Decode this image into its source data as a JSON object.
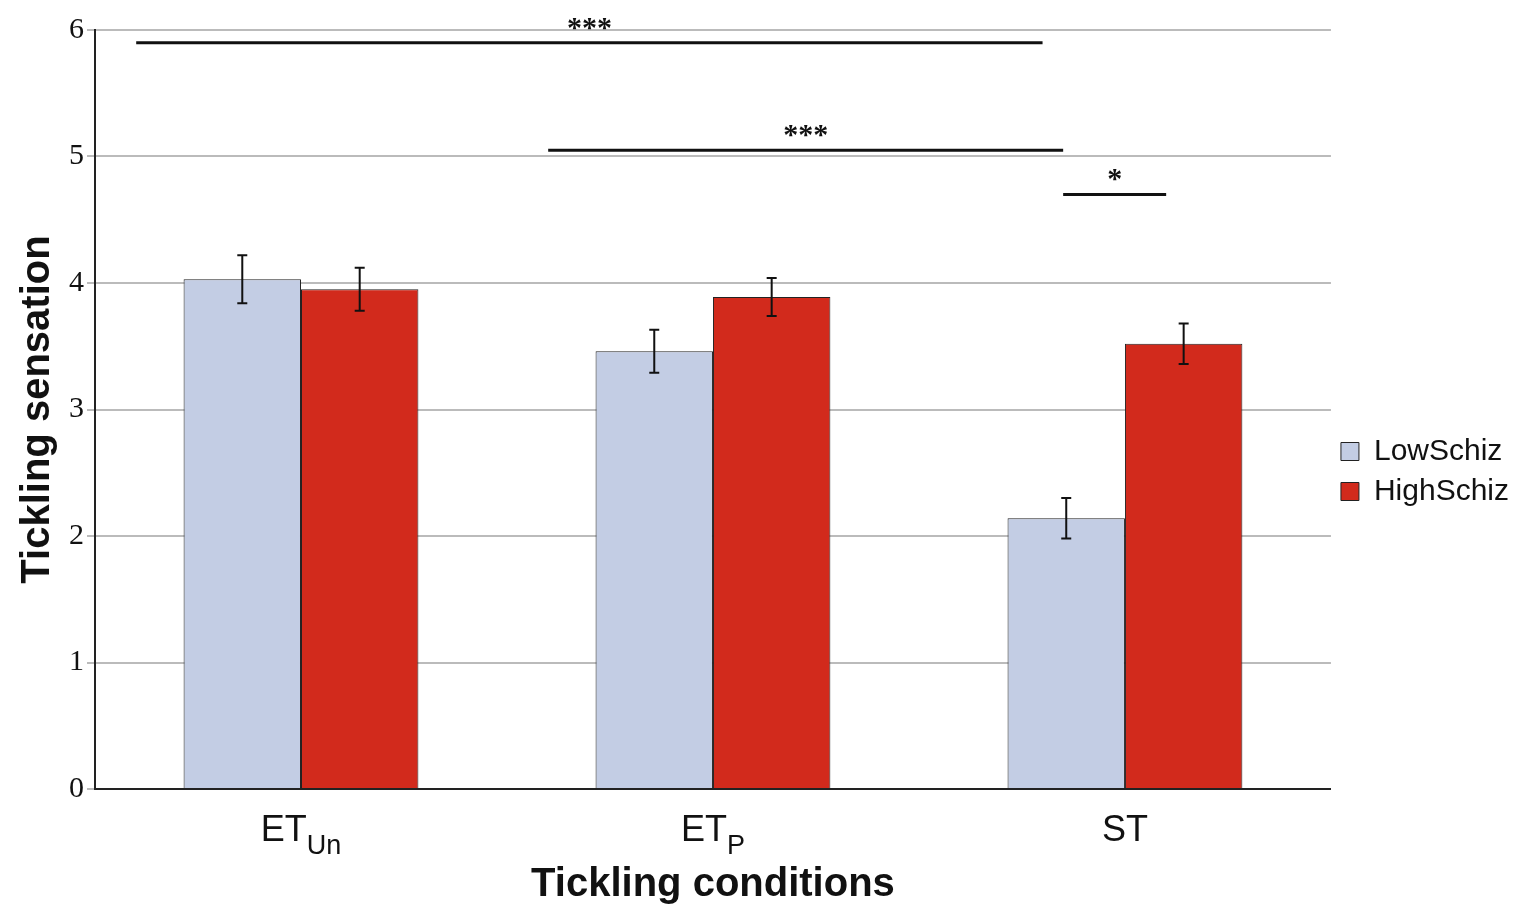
{
  "chart_data": {
    "type": "bar",
    "xlabel": "Tickling conditions",
    "ylabel": "Tickling sensation",
    "categories": [
      "ET$_{Un}$",
      "ET$_{P}$",
      "ST"
    ],
    "series": [
      {
        "name": "LowSchiz",
        "color": "#c3cde4",
        "values": [
          4.03,
          3.46,
          2.14
        ],
        "errors": [
          0.19,
          0.17,
          0.16
        ]
      },
      {
        "name": "HighSchiz",
        "color": "#d22a1c",
        "values": [
          3.95,
          3.89,
          3.52
        ],
        "errors": [
          0.17,
          0.15,
          0.16
        ]
      }
    ],
    "ylim": [
      0,
      6
    ],
    "yticks": [
      0,
      1,
      2,
      3,
      4,
      5,
      6
    ],
    "grid": "y",
    "legend": "right",
    "annotations": [
      "***",
      "***",
      "*"
    ]
  }
}
